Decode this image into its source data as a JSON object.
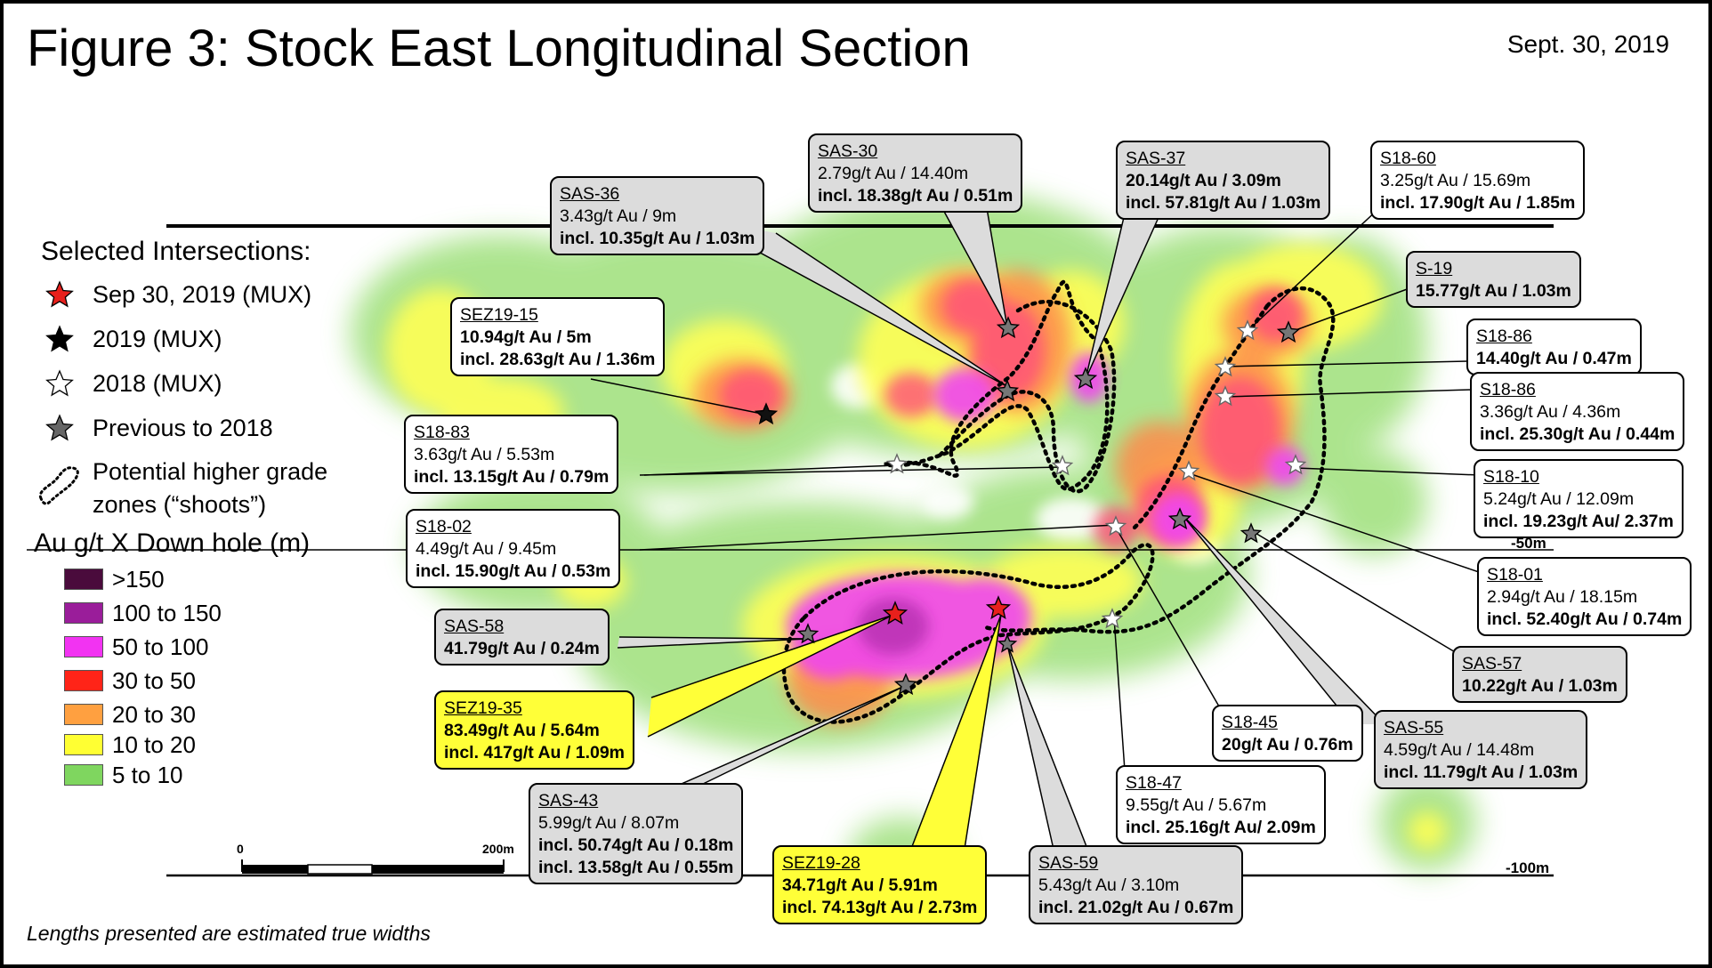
{
  "title": "Figure 3: Stock East Longitudinal Section",
  "date": "Sept. 30, 2019",
  "footnote": "Lengths presented are estimated true widths",
  "legend": {
    "heading": "Selected Intersections:",
    "items": [
      {
        "label": "Sep 30, 2019 (MUX)",
        "fill": "#e8201c",
        "icon": "red-star"
      },
      {
        "label": "2019 (MUX)",
        "fill": "#000000",
        "icon": "black-star"
      },
      {
        "label": "2018  (MUX)",
        "fill": "#ffffff",
        "icon": "white-star"
      },
      {
        "label": "Previous to 2018",
        "fill": "#666666",
        "icon": "gray-star"
      }
    ],
    "zones_label": "Potential higher grade zones (“shoots”)",
    "scale_heading": "Au g/t X Down hole (m)",
    "scale": [
      {
        "label": ">150",
        "color": "#4a0b3c"
      },
      {
        "label": "100 to 150",
        "color": "#9a1d9a"
      },
      {
        "label": "50 to 100",
        "color": "#f233f2"
      },
      {
        "label": "30 to 50",
        "color": "#ff2418"
      },
      {
        "label": "20 to 30",
        "color": "#ffa040"
      },
      {
        "label": "10 to 20",
        "color": "#ffff33"
      },
      {
        "label": "5 to 10",
        "color": "#7fd65f"
      }
    ]
  },
  "depth_labels": {
    "d50": "-50m",
    "d100": "-100m"
  },
  "scale_bar": {
    "start": "0",
    "end": "200m"
  },
  "callouts": [
    {
      "id": "SAS-36",
      "style": "gray",
      "lines": [
        "3.43g/t Au / 9m",
        "incl. 10.35g/t Au / 1.03m"
      ],
      "bold": [
        false,
        true
      ]
    },
    {
      "id": "SAS-30",
      "style": "gray",
      "lines": [
        "2.79g/t Au / 14.40m",
        "incl. 18.38g/t Au / 0.51m"
      ],
      "bold": [
        false,
        true
      ]
    },
    {
      "id": "SAS-37",
      "style": "gray",
      "lines": [
        "20.14g/t Au / 3.09m",
        "incl. 57.81g/t Au / 1.03m"
      ],
      "bold": [
        true,
        true
      ]
    },
    {
      "id": "S18-60",
      "style": "white",
      "lines": [
        "3.25g/t Au / 15.69m",
        "incl. 17.90g/t Au / 1.85m"
      ],
      "bold": [
        false,
        true
      ]
    },
    {
      "id": "S-19",
      "style": "gray",
      "lines": [
        "15.77g/t Au / 1.03m"
      ],
      "bold": [
        true
      ]
    },
    {
      "id": "S18-86",
      "style": "white",
      "lines": [
        "14.40g/t Au / 0.47m"
      ],
      "bold": [
        true
      ]
    },
    {
      "id": "S18-86",
      "style": "white",
      "lines": [
        "3.36g/t Au / 4.36m",
        "incl. 25.30g/t Au / 0.44m"
      ],
      "bold": [
        false,
        true
      ]
    },
    {
      "id": "SEZ19-15",
      "style": "white",
      "lines": [
        "10.94g/t Au / 5m",
        "incl. 28.63g/t Au / 1.36m"
      ],
      "bold": [
        true,
        true
      ]
    },
    {
      "id": "S18-83",
      "style": "white",
      "lines": [
        "3.63g/t Au / 5.53m",
        "incl. 13.15g/t Au / 0.79m"
      ],
      "bold": [
        false,
        true
      ]
    },
    {
      "id": "S18-10",
      "style": "white",
      "lines": [
        "5.24g/t Au / 12.09m",
        "incl. 19.23g/t Au/ 2.37m"
      ],
      "bold": [
        false,
        true
      ]
    },
    {
      "id": "S18-02",
      "style": "white",
      "lines": [
        "4.49g/t Au / 9.45m",
        "incl. 15.90g/t Au / 0.53m"
      ],
      "bold": [
        false,
        true
      ]
    },
    {
      "id": "S18-01",
      "style": "white",
      "lines": [
        "2.94g/t Au / 18.15m",
        "incl. 52.40g/t Au / 0.74m"
      ],
      "bold": [
        false,
        true
      ]
    },
    {
      "id": "SAS-58",
      "style": "gray",
      "lines": [
        "41.79g/t Au / 0.24m"
      ],
      "bold": [
        true
      ]
    },
    {
      "id": "SAS-57",
      "style": "gray",
      "lines": [
        "10.22g/t Au / 1.03m"
      ],
      "bold": [
        true
      ]
    },
    {
      "id": "SEZ19-35",
      "style": "yellow",
      "lines": [
        "83.49g/t Au / 5.64m",
        "incl. 417g/t Au / 1.09m"
      ],
      "bold": [
        true,
        true
      ]
    },
    {
      "id": "S18-45",
      "style": "white",
      "lines": [
        "20g/t Au / 0.76m"
      ],
      "bold": [
        true
      ]
    },
    {
      "id": "SAS-55",
      "style": "gray",
      "lines": [
        "4.59g/t Au / 14.48m",
        "incl. 11.79g/t Au / 1.03m"
      ],
      "bold": [
        false,
        true
      ]
    },
    {
      "id": "SAS-43",
      "style": "gray",
      "lines": [
        "5.99g/t Au / 8.07m",
        "incl. 50.74g/t Au / 0.18m",
        "incl. 13.58g/t Au / 0.55m"
      ],
      "bold": [
        false,
        true,
        true
      ]
    },
    {
      "id": "S18-47",
      "style": "white",
      "lines": [
        "9.55g/t Au / 5.67m",
        "incl. 25.16g/t Au/ 2.09m"
      ],
      "bold": [
        false,
        true
      ]
    },
    {
      "id": "SEZ19-28",
      "style": "yellow",
      "lines": [
        "34.71g/t Au / 5.91m",
        "incl. 74.13g/t Au / 2.73m"
      ],
      "bold": [
        true,
        true
      ]
    },
    {
      "id": "SAS-59",
      "style": "gray",
      "lines": [
        "5.43g/t Au / 3.10m",
        "incl. 21.02g/t Au / 0.67m"
      ],
      "bold": [
        false,
        true
      ]
    }
  ]
}
